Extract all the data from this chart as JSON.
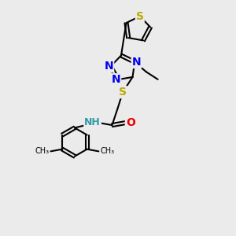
{
  "bg_color": "#ebebeb",
  "bond_color": "#000000",
  "atom_colors": {
    "N": "#0000ee",
    "S": "#bbaa00",
    "O": "#ee0000",
    "NH": "#3399aa",
    "C": "#000000"
  },
  "font_size_atom": 10,
  "lw": 1.5
}
